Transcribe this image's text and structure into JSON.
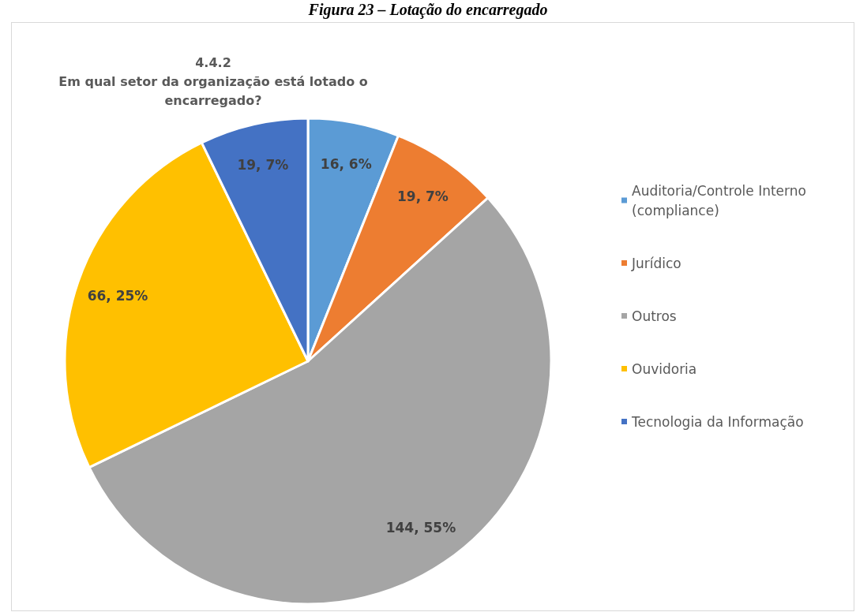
{
  "chart_data": {
    "type": "pie",
    "title": "4.4.2\nEm qual setor da organização está lotado o\nencarregado?",
    "annotations": [
      "Figura 23 – Lotação do encarregado"
    ],
    "categories": [
      "Auditoria/Controle Interno (compliance)",
      "Jurídico",
      "Outros",
      "Ouvidoria",
      "Tecnologia da Informação"
    ],
    "values": [
      16,
      19,
      144,
      66,
      19
    ],
    "value_labels": [
      "16, 6%",
      "19, 7%",
      "144, 55%",
      "66, 25%",
      "19, 7%"
    ],
    "colors": [
      "#5b9bd5",
      "#ed7d31",
      "#a5a5a5",
      "#ffc000",
      "#4472c4"
    ],
    "legend": "right"
  }
}
